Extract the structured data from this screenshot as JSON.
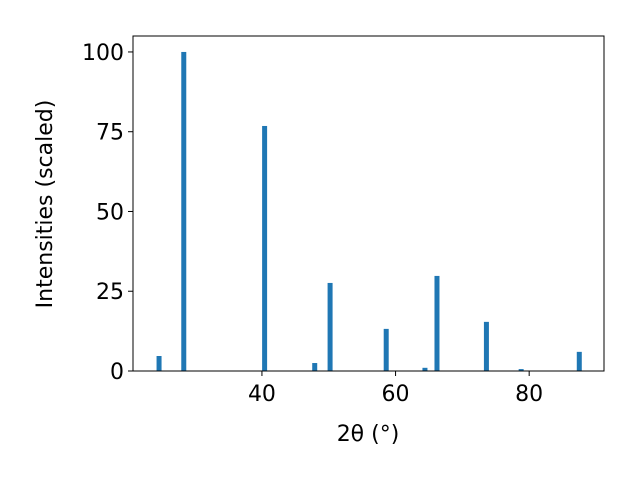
{
  "chart_data": {
    "type": "bar",
    "x": [
      24.6,
      28.3,
      40.4,
      47.9,
      50.2,
      58.6,
      64.4,
      66.2,
      73.6,
      78.8,
      87.5
    ],
    "values": [
      4.7,
      100,
      76.8,
      2.5,
      27.6,
      13.2,
      1,
      29.8,
      15.4,
      0.6,
      6
    ],
    "color": "#1f77b4",
    "xlabel": "2θ (°)",
    "ylabel": "Intensities (scaled)",
    "xlim": [
      20.7,
      91.2
    ],
    "xticks": [
      40,
      60,
      80
    ],
    "ylim": [
      0,
      105
    ],
    "yticks": [
      0,
      25,
      50,
      75,
      100
    ],
    "grid": false
  }
}
